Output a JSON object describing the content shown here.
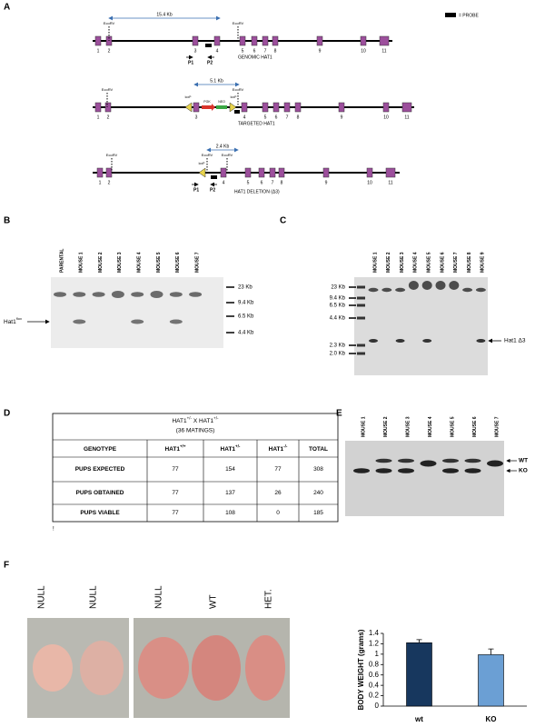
{
  "panels": {
    "a": "A",
    "b": "B",
    "c": "C",
    "d": "D",
    "e": "E",
    "f": "F"
  },
  "panel_a": {
    "probe_legend": "= PROBE",
    "genomic": {
      "distance": "15.4 Kb",
      "sites": [
        "EcoRV",
        "EcoRV"
      ],
      "exons": [
        "1",
        "2",
        "3",
        "4",
        "5",
        "6",
        "7",
        "8",
        "9",
        "10",
        "11"
      ],
      "primers": [
        "P1",
        "P2"
      ],
      "label": "GENOMIC HAT1"
    },
    "targeted": {
      "distance": "5.1 Kb",
      "sites": [
        "EcoRV",
        "EcoRV"
      ],
      "cassette": [
        "loxP",
        "PGK",
        "NEO",
        "loxP"
      ],
      "exons": [
        "1",
        "2",
        "3",
        "4",
        "5",
        "6",
        "7",
        "8",
        "9",
        "10",
        "11"
      ],
      "label": "TARGETED HAT1"
    },
    "deletion": {
      "distance": "2.4 Kb",
      "sites": [
        "EcoRV",
        "EcoRV",
        "EcoRV"
      ],
      "lox": "loxP",
      "exons": [
        "1",
        "2",
        "4",
        "5",
        "6",
        "7",
        "8",
        "9",
        "10",
        "11"
      ],
      "primers": [
        "P1",
        "P2"
      ],
      "label": "HAT1 DELETION (Δ3)"
    }
  },
  "panel_b": {
    "lanes": [
      "PARENTAL",
      "MOUSE 1",
      "MOUSE 2",
      "MOUSE 3",
      "MOUSE 4",
      "MOUSE 5",
      "MOUSE 6",
      "MOUSE 7"
    ],
    "markers": [
      "23 Kb",
      "9.4 Kb",
      "6.5 Kb",
      "4.4 Kb"
    ],
    "band_label": {
      "base": "Hat1",
      "sup": "flox"
    }
  },
  "panel_c": {
    "lanes": [
      "MOUSE 1",
      "MOUSE 2",
      "MOUSE 3",
      "MOUSE 4",
      "MOUSE 5",
      "MOUSE 6",
      "MOUSE 7",
      "MOUSE 8",
      "MOUSE 9"
    ],
    "markers": [
      "23 Kb",
      "9.4 Kb",
      "6.5 Kb",
      "4.4 Kb",
      "2.3 Kb",
      "2.0 Kb"
    ],
    "band_label": "Hat1 Δ3"
  },
  "panel_d": {
    "title": [
      "HAT1",
      "+/-",
      " X HAT1",
      "+/-"
    ],
    "subtitle": "(36 MATINGS)",
    "header": [
      [
        "GENOTYPE"
      ],
      [
        "HAT1",
        "+/+"
      ],
      [
        "HAT1",
        "+/-"
      ],
      [
        "HAT1",
        "-/-"
      ],
      [
        "TOTAL"
      ]
    ],
    "rows": [
      [
        "PUPS EXPECTED",
        77,
        154,
        77,
        308
      ],
      [
        "PUPS OBTAINED",
        77,
        137,
        26,
        240
      ],
      [
        "PUPS VIABLE",
        77,
        108,
        0,
        185
      ]
    ],
    "footnote": "!"
  },
  "panel_e": {
    "lanes": [
      "MOUSE 1",
      "MOUSE 2",
      "MOUSE 3",
      "MOUSE 4",
      "MOUSE 5",
      "MOUSE 6",
      "MOUSE 7"
    ],
    "bands": [
      "WT",
      "KO"
    ]
  },
  "panel_f": {
    "photo_labels": [
      "NULL",
      "NULL",
      "NULL",
      "WT",
      "HET."
    ]
  },
  "chart_data": {
    "type": "bar",
    "ylabel": "BODY WEIGHT (grams)",
    "categories": [
      "wt",
      "KO"
    ],
    "values": [
      1.22,
      0.99
    ],
    "errors": [
      0.06,
      0.11
    ],
    "colors": [
      "#17375e",
      "#6b9fd4"
    ],
    "ylim": [
      0,
      1.4
    ],
    "yticks": [
      0,
      0.2,
      0.4,
      0.6,
      0.8,
      1,
      1.2,
      1.4
    ]
  }
}
